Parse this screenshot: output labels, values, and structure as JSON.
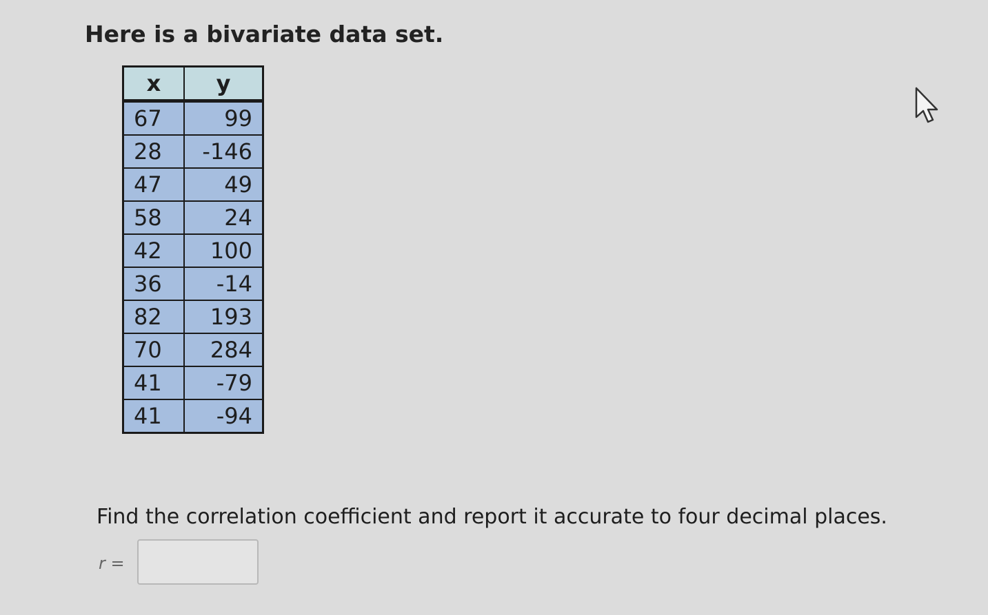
{
  "intro": "Here is a bivariate data set.",
  "table": {
    "header": [
      "x",
      "y"
    ],
    "rows": [
      [
        67,
        99
      ],
      [
        28,
        -146
      ],
      [
        47,
        49
      ],
      [
        58,
        24
      ],
      [
        42,
        100
      ],
      [
        36,
        -14
      ],
      [
        82,
        193
      ],
      [
        70,
        284
      ],
      [
        41,
        -79
      ],
      [
        41,
        -94
      ]
    ]
  },
  "question": "Find the correlation coefficient and report it accurate to four decimal places.",
  "answer_label": "r ="
}
